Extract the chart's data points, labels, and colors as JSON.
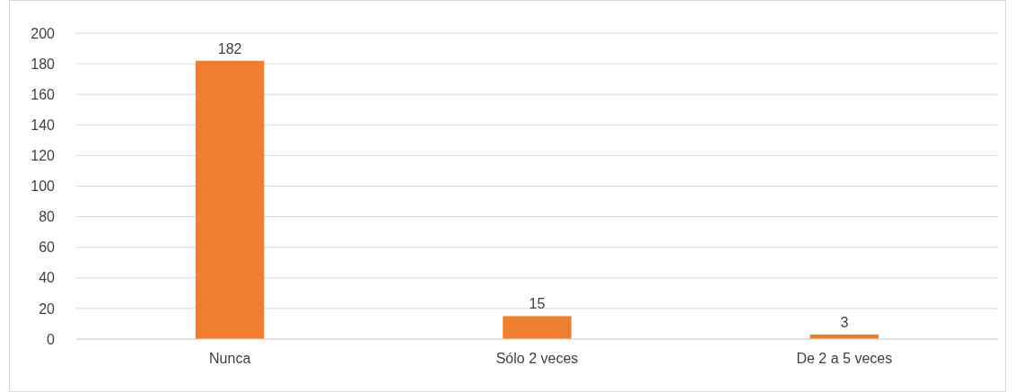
{
  "chart_data": {
    "type": "bar",
    "categories": [
      "Nunca",
      "Sólo 2 veces",
      "De 2 a 5 veces"
    ],
    "values": [
      182,
      15,
      3
    ],
    "color": "#ed7d31",
    "ylim": [
      0,
      200
    ],
    "yticks": [
      0,
      20,
      40,
      60,
      80,
      100,
      120,
      140,
      160,
      180,
      200
    ],
    "grid": "y",
    "data_labels": true
  }
}
